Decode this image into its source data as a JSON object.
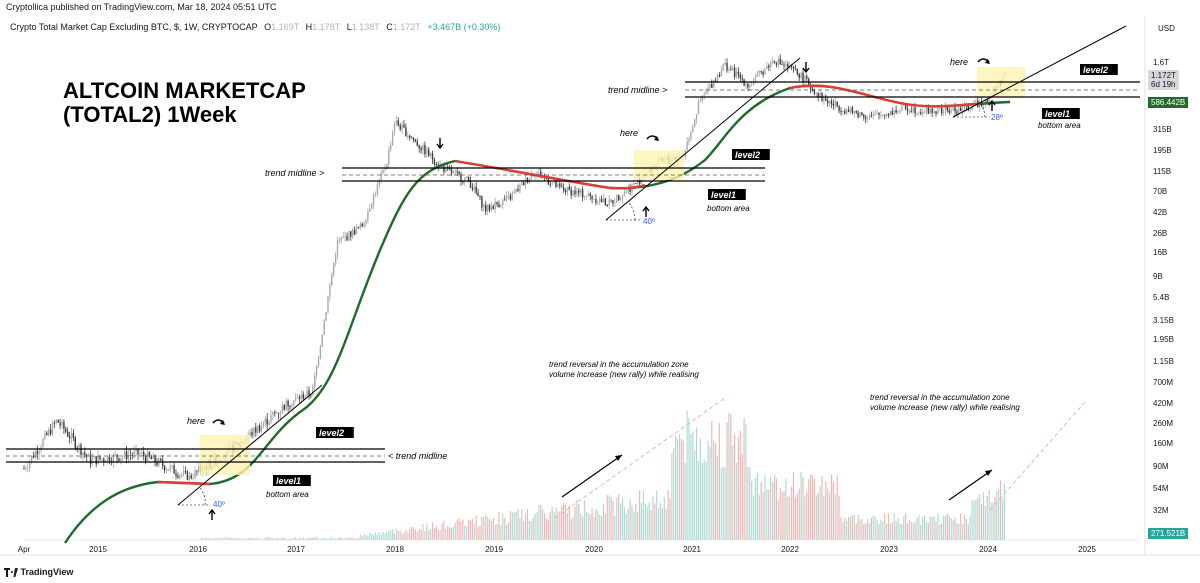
{
  "header": {
    "publisher": "Cryptollica published on TradingView.com, Mar 18, 2024 05:51 UTC",
    "symbol": "Crypto Total Market Cap Excluding BTC, $, 1W, CRYPTOCAP",
    "open_label": "O",
    "open_value": "1.169T",
    "high_label": "H",
    "high_value": "1.178T",
    "low_label": "L",
    "low_value": "1.138T",
    "close_label": "C",
    "close_value": "1.172T",
    "change": "+3.467B (+0.30%)"
  },
  "footer": {
    "brand": "TradingView"
  },
  "price_axis": {
    "currency": "USD",
    "ticks": [
      "1.6T",
      "586.442B",
      "315B",
      "195B",
      "115B",
      "70B",
      "42B",
      "26B",
      "16B",
      "9B",
      "5.4B",
      "3.15B",
      "1.95B",
      "1.15B",
      "700M",
      "420M",
      "260M",
      "160M",
      "90M",
      "54M",
      "32M"
    ],
    "current_price_label": "1.172T",
    "current_countdown": "6d 19h",
    "ma_label": "586.442B",
    "volume_label": "271.521B"
  },
  "colors": {
    "up": "#26a69a",
    "down": "#ef5350",
    "ma_green": "#1e6b2a",
    "ma_red": "#e53935",
    "highlight": "#fff3b0",
    "label_bg": "#000000"
  },
  "annotations": {
    "title_line1": "ALTCOIN MARKETCAP",
    "title_line2": "(TOTAL2) 1Week",
    "here_label": "here",
    "level2_label": "level2",
    "level1_label": "level1",
    "bottom_area": "bottom area",
    "trend_midline_right": "trend midline >",
    "trend_midline_left": "< trend midline",
    "angle_40": "40º",
    "angle_28": "28º",
    "reversal_line1": "trend reversal in the accumulation zone",
    "reversal_line2": "volume increase (new rally) while realising"
  },
  "chart_data": {
    "type": "line",
    "title": "Crypto Total Market Cap Excluding BTC, $, 1W, CRYPTOCAP",
    "x_tick_labels": [
      "Apr",
      "2015",
      "2016",
      "2017",
      "2018",
      "2019",
      "2020",
      "2021",
      "2022",
      "2023",
      "2024",
      "2025"
    ],
    "y_scale": "log",
    "y_unit": "USD",
    "y_ticks": [
      "1.6T",
      "315B",
      "195B",
      "115B",
      "70B",
      "42B",
      "26B",
      "16B",
      "9B",
      "5.4B",
      "3.15B",
      "1.95B",
      "1.15B",
      "700M",
      "420M",
      "260M",
      "160M",
      "90M",
      "54M",
      "32M"
    ],
    "series": [
      {
        "name": "TOTAL2",
        "x": [
          "2014-04",
          "2014-08",
          "2014-12",
          "2015-06",
          "2015-12",
          "2016-06",
          "2016-12",
          "2017-03",
          "2017-06",
          "2017-09",
          "2017-12",
          "2018-01",
          "2018-04",
          "2018-07",
          "2018-10",
          "2018-12",
          "2019-03",
          "2019-06",
          "2019-09",
          "2019-12",
          "2020-03",
          "2020-06",
          "2020-09",
          "2020-12",
          "2021-02",
          "2021-05",
          "2021-08",
          "2021-11",
          "2022-02",
          "2022-05",
          "2022-08",
          "2022-11",
          "2023-03",
          "2023-06",
          "2023-10",
          "2024-01",
          "2024-03"
        ],
        "y": [
          0.12,
          0.3,
          0.14,
          0.16,
          0.1,
          0.19,
          0.42,
          0.55,
          20,
          30,
          140,
          380,
          210,
          120,
          90,
          45,
          60,
          115,
          75,
          65,
          52,
          82,
          140,
          170,
          600,
          1500,
          900,
          1700,
          1200,
          640,
          480,
          420,
          520,
          480,
          500,
          650,
          1172
        ]
      }
    ],
    "volume": {
      "name": "Volume",
      "last_value": "271.521B"
    }
  }
}
